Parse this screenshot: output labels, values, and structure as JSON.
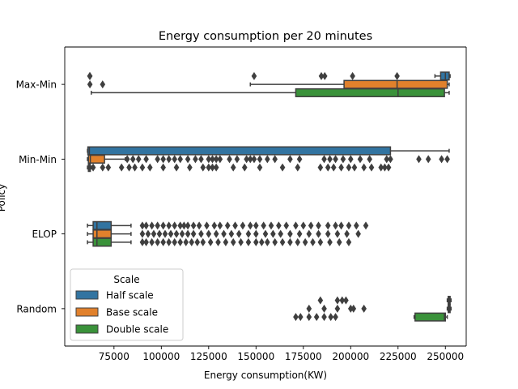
{
  "chart_data": {
    "type": "boxplot",
    "title": "Energy consumption per 20 minutes",
    "xlabel": "Energy consumption(KW)",
    "ylabel": "Policy",
    "xlim": [
      49000,
      261000
    ],
    "x_ticks": [
      75000,
      100000,
      125000,
      150000,
      175000,
      200000,
      225000,
      250000
    ],
    "x_tick_labels": [
      "75000",
      "100000",
      "125000",
      "150000",
      "175000",
      "200000",
      "225000",
      "250000"
    ],
    "categories": [
      "Max-Min",
      "Min-Min",
      "ELOP",
      "Random"
    ],
    "legend": {
      "title": "Scale",
      "position": "lower-left",
      "entries": [
        "Half scale",
        "Base scale",
        "Double scale"
      ]
    },
    "series": [
      {
        "name": "Half scale",
        "color": "#3274a1",
        "boxes": [
          {
            "category": "Max-Min",
            "whisker_low": 244500,
            "q1": 247500,
            "median": 250000,
            "q3": 252000,
            "whisker_high": 252500,
            "outliers": [
              62200,
              62300,
              149000,
              184500,
              186300,
              201000,
              224500
            ]
          },
          {
            "category": "Min-Min",
            "whisker_low": 61000,
            "q1": 61200,
            "median": 62000,
            "q3": 221000,
            "whisker_high": 252000,
            "outliers": []
          },
          {
            "category": "ELOP",
            "whisker_low": 61000,
            "q1": 64000,
            "median": 66000,
            "q3": 73500,
            "whisker_high": 84000,
            "outliers": [
              90000,
              92000,
              95000,
              98000,
              101000,
              104000,
              107000,
              110000,
              112000,
              114000,
              117000,
              120000,
              124000,
              128000,
              131000,
              135000,
              139000,
              143000,
              147000,
              150000,
              154000,
              158000,
              162000,
              166000,
              171000,
              175000,
              179000,
              183000,
              188000,
              192000,
              195000,
              199000,
              203000,
              208000
            ]
          },
          {
            "category": "Random",
            "whisker_low": 251000,
            "q1": 251500,
            "median": 252000,
            "q3": 252500,
            "whisker_high": 253000,
            "outliers": [
              184000,
              193000,
              195500,
              197500
            ]
          }
        ]
      },
      {
        "name": "Base scale",
        "color": "#e1812c",
        "boxes": [
          {
            "category": "Max-Min",
            "whisker_low": 147000,
            "q1": 196500,
            "median": 224500,
            "q3": 251000,
            "whisker_high": 252000,
            "outliers": [
              62300,
              69000
            ]
          },
          {
            "category": "Min-Min",
            "whisker_low": 61000,
            "q1": 61500,
            "median": 62500,
            "q3": 70000,
            "whisker_high": 81000,
            "outliers": [
              82000,
              85000,
              88000,
              92000,
              98000,
              101000,
              104000,
              107000,
              110000,
              114000,
              118000,
              121000,
              125000,
              127000,
              129000,
              131000,
              136000,
              140000,
              145000,
              147000,
              149000,
              152000,
              156000,
              160000,
              168000,
              173000,
              186000,
              189000,
              192000,
              196000,
              200000,
              205000,
              210000,
              219000,
              221000,
              236000,
              241000,
              248000,
              251000
            ]
          },
          {
            "category": "ELOP",
            "whisker_low": 61000,
            "q1": 64000,
            "median": 66000,
            "q3": 73500,
            "whisker_high": 84000,
            "outliers": [
              90000,
              93000,
              96000,
              99000,
              102000,
              105000,
              108000,
              111000,
              114000,
              117000,
              121000,
              125000,
              129000,
              133000,
              137000,
              141000,
              146000,
              150000,
              155000,
              159000,
              163000,
              168000,
              173000,
              178000,
              183000,
              188000,
              193000,
              198000,
              204000
            ]
          },
          {
            "category": "Random",
            "whisker_low": 251000,
            "q1": 251500,
            "median": 252000,
            "q3": 252500,
            "whisker_high": 253000,
            "outliers": [
              178000,
              186000,
              193000,
              200000,
              201500,
              207000
            ]
          }
        ]
      },
      {
        "name": "Double scale",
        "color": "#3a923a",
        "boxes": [
          {
            "category": "Max-Min",
            "whisker_low": 63000,
            "q1": 171000,
            "median": 225000,
            "q3": 249500,
            "whisker_high": 252000,
            "outliers": []
          },
          {
            "category": "Min-Min",
            "whisker_low": 61000,
            "q1": 61500,
            "median": 62000,
            "q3": 62500,
            "whisker_high": 63000,
            "outliers": [
              64000,
              69000,
              72000,
              79000,
              83000,
              86000,
              90000,
              94000,
              101000,
              108000,
              115000,
              122000,
              125000,
              127000,
              129000,
              138000,
              144000,
              152000,
              164000,
              172000,
              184000,
              188000,
              191000,
              195000,
              199000,
              202000,
              207000,
              211000,
              216000,
              218000,
              220000
            ]
          },
          {
            "category": "ELOP",
            "whisker_low": 61000,
            "q1": 64000,
            "median": 66000,
            "q3": 73500,
            "whisker_high": 84000,
            "outliers": [
              90000,
              92000,
              95000,
              98000,
              101000,
              104000,
              107000,
              110000,
              113000,
              116000,
              119000,
              122000,
              126000,
              130000,
              134000,
              138000,
              142000,
              146000,
              150000,
              153000,
              156000,
              160000,
              164000,
              168000,
              172000,
              176000,
              180000,
              184000,
              189000,
              194000,
              199000
            ]
          },
          {
            "category": "Random",
            "whisker_low": 233500,
            "q1": 234000,
            "median": 249500,
            "q3": 250000,
            "whisker_high": 251000,
            "outliers": [
              171000,
              173500,
              178000,
              182000,
              186000,
              189500,
              192000
            ]
          }
        ]
      }
    ]
  }
}
